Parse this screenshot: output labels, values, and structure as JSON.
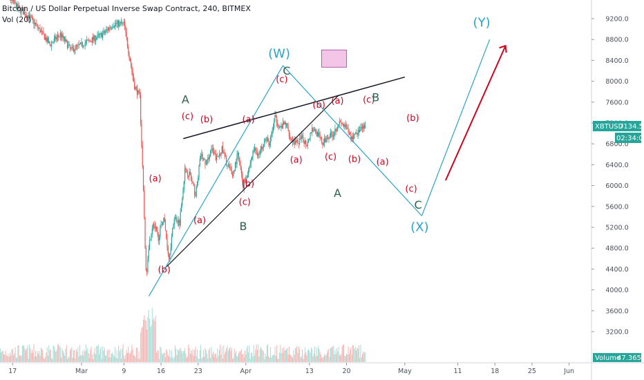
{
  "header": {
    "title": "Bitcoin / US Dollar Perpetual Inverse Swap Contract, 240, BITMEX",
    "volume_label": "Vol (20)"
  },
  "price_tag": {
    "symbol": "XBTUSD",
    "price": "7134.5",
    "countdown": "02:34:08"
  },
  "volume_tag": {
    "label": "Volume",
    "value": "47.365M"
  },
  "colors": {
    "candle_up": "#26a69a",
    "candle_down": "#ef5350",
    "volume_up": "#a8dcd6",
    "volume_down": "#f4b3b1",
    "wave_red": "#d0021b",
    "wave_blue": "#29a3c7",
    "wave_green": "#2e5e4e",
    "price_tag": "#26a69a"
  },
  "chart_data": {
    "type": "candlestick",
    "title": "Bitcoin / US Dollar Perpetual Inverse Swap Contract, 240, BITMEX",
    "y_ticks": [
      9200.0,
      8800.0,
      8400.0,
      8000.0,
      7600.0,
      7200.0,
      6800.0,
      6400.0,
      6000.0,
      5600.0,
      5200.0,
      4800.0,
      4400.0,
      4000.0,
      3600.0,
      3200.0
    ],
    "x_ticks": [
      {
        "label": "17",
        "day": -13
      },
      {
        "label": "Mar",
        "day": 0
      },
      {
        "label": "9",
        "day": 8
      },
      {
        "label": "16",
        "day": 15
      },
      {
        "label": "23",
        "day": 22
      },
      {
        "label": "Apr",
        "day": 31
      },
      {
        "label": "13",
        "day": 43
      },
      {
        "label": "20",
        "day": 50
      },
      {
        "label": "May",
        "day": 61
      },
      {
        "label": "11",
        "day": 71
      },
      {
        "label": "18",
        "day": 78
      },
      {
        "label": "25",
        "day": 85
      },
      {
        "label": "Jun",
        "day": 92
      }
    ],
    "price_path": [
      [
        -16,
        9700
      ],
      [
        -14,
        9650
      ],
      [
        -12,
        9400
      ],
      [
        -10,
        9250
      ],
      [
        -8,
        9000
      ],
      [
        -6,
        8700
      ],
      [
        -4,
        8900
      ],
      [
        -2,
        8600
      ],
      [
        0,
        8700
      ],
      [
        2,
        8800
      ],
      [
        4,
        8900
      ],
      [
        6,
        9100
      ],
      [
        8,
        9100
      ],
      [
        9,
        8500
      ],
      [
        10,
        7900
      ],
      [
        11,
        7700
      ],
      [
        11.8,
        5500
      ],
      [
        12.2,
        4200
      ],
      [
        12.6,
        4800
      ],
      [
        13.5,
        5300
      ],
      [
        14.5,
        5000
      ],
      [
        15.5,
        5400
      ],
      [
        16.5,
        4600
      ],
      [
        17.5,
        5400
      ],
      [
        18.5,
        5300
      ],
      [
        19.5,
        6300
      ],
      [
        20.5,
        6200
      ],
      [
        21.5,
        5800
      ],
      [
        22.5,
        6600
      ],
      [
        23.5,
        6400
      ],
      [
        24.5,
        6700
      ],
      [
        25.5,
        6500
      ],
      [
        26.5,
        6700
      ],
      [
        27.5,
        6400
      ],
      [
        28.5,
        6200
      ],
      [
        29.5,
        6600
      ],
      [
        30.5,
        6000
      ],
      [
        31.5,
        6300
      ],
      [
        32.5,
        6700
      ],
      [
        33.5,
        6600
      ],
      [
        34.5,
        6900
      ],
      [
        35.5,
        6800
      ],
      [
        36.5,
        7300
      ],
      [
        37.5,
        7100
      ],
      [
        38.5,
        7200
      ],
      [
        39.5,
        6900
      ],
      [
        40.5,
        6800
      ],
      [
        41.5,
        6900
      ],
      [
        42.5,
        6800
      ],
      [
        43.5,
        7100
      ],
      [
        44.5,
        7000
      ],
      [
        45.5,
        6800
      ],
      [
        46.5,
        6950
      ],
      [
        47.5,
        7000
      ],
      [
        48.5,
        7200
      ],
      [
        49.5,
        7150
      ],
      [
        50.5,
        7000
      ],
      [
        51,
        6900
      ],
      [
        51.5,
        7000
      ],
      [
        52.5,
        7050
      ],
      [
        53.5,
        7134.5
      ]
    ],
    "annotations": {
      "red_labels": [
        {
          "text": "(c)",
          "day": 20,
          "price": 7270
        },
        {
          "text": "(b)",
          "day": 23.6,
          "price": 7210
        },
        {
          "text": "(a)",
          "day": 31.5,
          "price": 7210
        },
        {
          "text": "(c)",
          "day": 37.8,
          "price": 7980
        },
        {
          "text": "(b)",
          "day": 44.8,
          "price": 7490
        },
        {
          "text": "(a)",
          "day": 48.3,
          "price": 7570
        },
        {
          "text": "(c)",
          "day": 54.2,
          "price": 7590
        },
        {
          "text": "(b)",
          "day": 62.5,
          "price": 7240
        },
        {
          "text": "(a)",
          "day": 40.5,
          "price": 6440
        },
        {
          "text": "(c)",
          "day": 47,
          "price": 6500
        },
        {
          "text": "(b)",
          "day": 51.5,
          "price": 6450
        },
        {
          "text": "(a)",
          "day": 56.8,
          "price": 6400
        },
        {
          "text": "(c)",
          "day": 62.2,
          "price": 5880
        },
        {
          "text": "(a)",
          "day": 13.9,
          "price": 6080
        },
        {
          "text": "(a)",
          "day": 22.3,
          "price": 5280
        },
        {
          "text": "(b)",
          "day": 31.4,
          "price": 5980
        },
        {
          "text": "(c)",
          "day": 30.8,
          "price": 5630
        },
        {
          "text": "(b)",
          "day": 15.6,
          "price": 4330
        }
      ],
      "green_labels": [
        {
          "text": "A",
          "day": 19.6,
          "price": 7580
        },
        {
          "text": "B",
          "day": 30.5,
          "price": 5150
        },
        {
          "text": "C",
          "day": 38.7,
          "price": 8130
        },
        {
          "text": "A",
          "day": 48.3,
          "price": 5780
        },
        {
          "text": "B",
          "day": 55.5,
          "price": 7620
        },
        {
          "text": "C",
          "day": 63.5,
          "price": 5560
        }
      ],
      "blue_labels": [
        {
          "text": "(W)",
          "day": 37.3,
          "price": 8450
        },
        {
          "text": "(X)",
          "day": 63.8,
          "price": 5130
        },
        {
          "text": "(Y)",
          "day": 75.5,
          "price": 9050
        }
      ]
    }
  }
}
